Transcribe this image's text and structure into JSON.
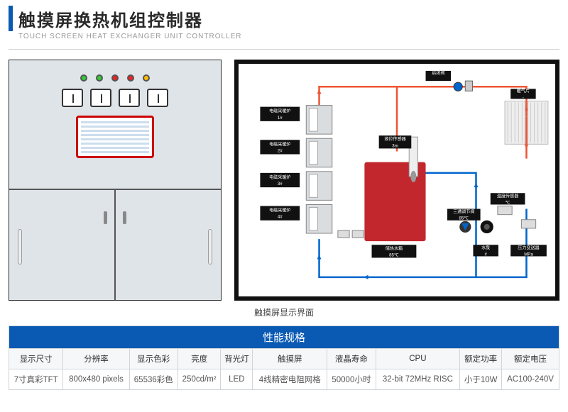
{
  "title": {
    "cn": "触摸屏换热机组控制器",
    "en": "TOUCH SCREEN HEAT EXCHANGER UNIT CONTROLLER"
  },
  "caption": "触摸屏显示界面",
  "leds": [
    "#3c3",
    "#3c3",
    "#e22",
    "#e22",
    "#fb0"
  ],
  "diagram": {
    "colors": {
      "hot": "#e53",
      "cold": "#06c",
      "box": "#111",
      "txt": "#fff",
      "tank": "#c1272d"
    },
    "boilers": [
      {
        "label1": "电磁采暖炉",
        "label2": "1#"
      },
      {
        "label1": "电磁采暖炉",
        "label2": "2#"
      },
      {
        "label1": "电磁采暖炉",
        "label2": "3#"
      },
      {
        "label1": "电磁采暖炉",
        "label2": "4#"
      }
    ],
    "tank": {
      "label1": "储热水箱",
      "label2": "85℃"
    },
    "level": {
      "label1": "液位传感器",
      "label2": "3m"
    },
    "start": {
      "label1": "启闭阀",
      "label2": ""
    },
    "rad": {
      "label1": "暖气片",
      "label2": "-"
    },
    "valve3": {
      "label1": "三通调节阀",
      "label2": "85℃"
    },
    "temp": {
      "label1": "温度传感器",
      "label2": "℃"
    },
    "pump": {
      "label1": "水泵",
      "label2": "#"
    },
    "press": {
      "label1": "压力变送器",
      "label2": "MPa"
    }
  },
  "table": {
    "title": "性能规格",
    "headers": [
      "显示尺寸",
      "分辨率",
      "显示色彩",
      "亮度",
      "背光灯",
      "触摸屏",
      "液晶寿命",
      "CPU",
      "额定功率",
      "额定电压"
    ],
    "values": [
      "7寸真彩TFT",
      "800x480 pixels",
      "65536彩色",
      "250cd/m²",
      "LED",
      "4线精密电阻网格",
      "50000小时",
      "32-bit 72MHz RISC",
      "小于10W",
      "AC100-240V"
    ]
  }
}
